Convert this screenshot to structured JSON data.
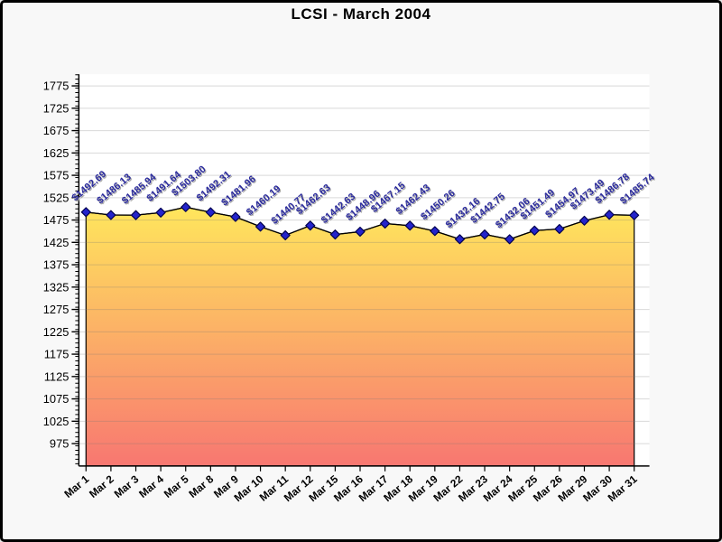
{
  "page": {
    "background": "#F8F8F8",
    "border_color": "#000000"
  },
  "chart_data": {
    "type": "area",
    "title": "LCSI - March 2004",
    "xlabel": "",
    "ylabel": "",
    "legend": "none",
    "grid": "horizontal-major",
    "categories": [
      "Mar 1",
      "Mar 2",
      "Mar 3",
      "Mar 4",
      "Mar 5",
      "Mar 8",
      "Mar 9",
      "Mar 10",
      "Mar 11",
      "Mar 12",
      "Mar 15",
      "Mar 16",
      "Mar 17",
      "Mar 18",
      "Mar 19",
      "Mar 22",
      "Mar 23",
      "Mar 24",
      "Mar 25",
      "Mar 26",
      "Mar 29",
      "Mar 30",
      "Mar 31"
    ],
    "series": [
      {
        "name": "LCSI",
        "values": [
          1492.69,
          1486.13,
          1485.94,
          1491.64,
          1503.8,
          1492.31,
          1481.96,
          1460.19,
          1440.77,
          1462.63,
          1442.63,
          1448.96,
          1467.15,
          1462.43,
          1450.26,
          1432.16,
          1442.75,
          1432.06,
          1451.49,
          1454.97,
          1473.49,
          1486.78,
          1485.74
        ]
      }
    ],
    "point_labels": [
      "$1492.69",
      "$1486.13",
      "$1485.94",
      "$1491.64",
      "$1503.80",
      "$1492.31",
      "$1481.96",
      "$1460.19",
      "$1440.77",
      "$1462.63",
      "$1442.63",
      "$1448.96",
      "$1467.15",
      "$1462.43",
      "$1450.26",
      "$1432.16",
      "$1442.75",
      "$1432.06",
      "$1451.49",
      "$1454.97",
      "$1473.49",
      "$1486.78",
      "$1485.74"
    ],
    "y_axis": {
      "ticks": [
        1775,
        1725,
        1675,
        1625,
        1575,
        1525,
        1475,
        1425,
        1375,
        1325,
        1275,
        1225,
        1175,
        1125,
        1075,
        1025,
        975
      ],
      "minor_step": 10,
      "range_top": 1800,
      "range_bottom": 930
    },
    "colors": {
      "area_gradient_top": "#FFE75C",
      "area_gradient_bottom": "#F87771",
      "line": "#000000",
      "marker_fill": "#2424CB",
      "marker_stroke": "#00004E",
      "point_label": "#2B2B9E",
      "point_label_shadow": "#A6A6A6",
      "axis": "#000000",
      "grid_line": "rgba(120,120,120,0.28)",
      "tick_label": "#000000",
      "plot_background": "#FFFFFF"
    }
  }
}
